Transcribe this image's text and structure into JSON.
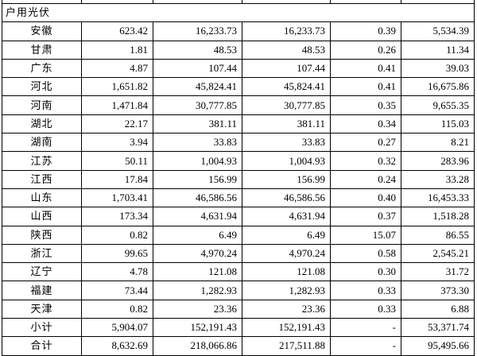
{
  "section_title": "户用光伏",
  "rows": [
    {
      "name": "安徽",
      "c1": "623.42",
      "c2": "16,233.73",
      "c3": "16,233.73",
      "c4": "0.39",
      "c5": "5,534.39"
    },
    {
      "name": "甘肃",
      "c1": "1.81",
      "c2": "48.53",
      "c3": "48.53",
      "c4": "0.26",
      "c5": "11.34"
    },
    {
      "name": "广东",
      "c1": "4.87",
      "c2": "107.44",
      "c3": "107.44",
      "c4": "0.41",
      "c5": "39.03"
    },
    {
      "name": "河北",
      "c1": "1,651.82",
      "c2": "45,824.41",
      "c3": "45,824.41",
      "c4": "0.41",
      "c5": "16,675.86"
    },
    {
      "name": "河南",
      "c1": "1,471.84",
      "c2": "30,777.85",
      "c3": "30,777.85",
      "c4": "0.35",
      "c5": "9,655.35"
    },
    {
      "name": "湖北",
      "c1": "22.17",
      "c2": "381.11",
      "c3": "381.11",
      "c4": "0.34",
      "c5": "115.03"
    },
    {
      "name": "湖南",
      "c1": "3.94",
      "c2": "33.83",
      "c3": "33.83",
      "c4": "0.27",
      "c5": "8.21"
    },
    {
      "name": "江苏",
      "c1": "50.11",
      "c2": "1,004.93",
      "c3": "1,004.93",
      "c4": "0.32",
      "c5": "283.96"
    },
    {
      "name": "江西",
      "c1": "17.84",
      "c2": "156.99",
      "c3": "156.99",
      "c4": "0.24",
      "c5": "33.28"
    },
    {
      "name": "山东",
      "c1": "1,703.41",
      "c2": "46,586.56",
      "c3": "46,586.56",
      "c4": "0.40",
      "c5": "16,453.33"
    },
    {
      "name": "山西",
      "c1": "173.34",
      "c2": "4,631.94",
      "c3": "4,631.94",
      "c4": "0.37",
      "c5": "1,518.28"
    },
    {
      "name": "陕西",
      "c1": "0.82",
      "c2": "6.49",
      "c3": "6.49",
      "c4": "15.07",
      "c5": "86.55"
    },
    {
      "name": "浙江",
      "c1": "99.65",
      "c2": "4,970.24",
      "c3": "4,970.24",
      "c4": "0.58",
      "c5": "2,545.21"
    },
    {
      "name": "辽宁",
      "c1": "4.78",
      "c2": "121.08",
      "c3": "121.08",
      "c4": "0.30",
      "c5": "31.72"
    },
    {
      "name": "福建",
      "c1": "73.44",
      "c2": "1,282.93",
      "c3": "1,282.93",
      "c4": "0.33",
      "c5": "373.30"
    },
    {
      "name": "天津",
      "c1": "0.82",
      "c2": "23.36",
      "c3": "23.36",
      "c4": "0.33",
      "c5": "6.88"
    },
    {
      "name": "小计",
      "c1": "5,904.07",
      "c2": "152,191.43",
      "c3": "152,191.43",
      "c4": "-",
      "c5": "53,371.74"
    },
    {
      "name": "合计",
      "c1": "8,632.69",
      "c2": "218,066.86",
      "c3": "217,511.88",
      "c4": "-",
      "c5": "95,495.66"
    }
  ]
}
